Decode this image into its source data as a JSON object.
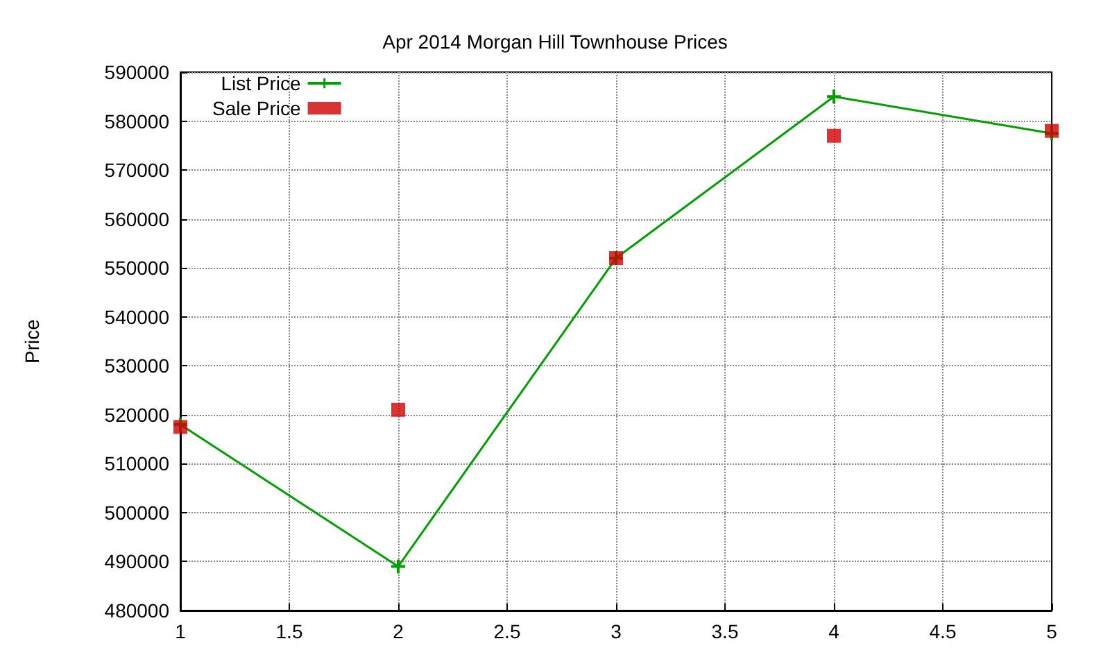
{
  "chart_data": {
    "type": "line",
    "title": "Apr 2014 Morgan Hill Townhouse Prices",
    "ylabel": "Price",
    "x": [
      1,
      2,
      3,
      4,
      5
    ],
    "series": [
      {
        "name": "List Price",
        "type": "line",
        "color": "#00a000",
        "marker": "cross",
        "values": [
          518000,
          489000,
          552000,
          585000,
          577500
        ]
      },
      {
        "name": "Sale Price",
        "type": "scatter",
        "color": "#d00000",
        "marker": "square",
        "values": [
          517500,
          521000,
          552000,
          577000,
          578000
        ]
      }
    ],
    "xlim": [
      1,
      5
    ],
    "xticks": [
      1,
      1.5,
      2,
      2.5,
      3,
      3.5,
      4,
      4.5,
      5
    ],
    "ylim": [
      480000,
      590000
    ],
    "yticks": [
      480000,
      490000,
      500000,
      510000,
      520000,
      530000,
      540000,
      550000,
      560000,
      570000,
      580000,
      590000
    ],
    "grid": true,
    "legend": "top left",
    "line_style": "solid"
  }
}
